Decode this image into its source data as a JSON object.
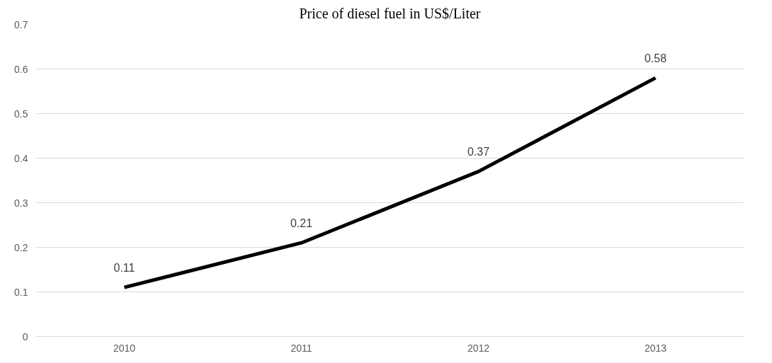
{
  "chart_data": {
    "type": "line",
    "title": "Price of diesel fuel in US$/Liter",
    "categories": [
      "2010",
      "2011",
      "2012",
      "2013"
    ],
    "series": [
      {
        "color": "#000000",
        "values": [
          0.11,
          0.21,
          0.37,
          0.58
        ]
      }
    ],
    "ylim": [
      0,
      0.7
    ],
    "yticks": [
      0,
      0.1,
      0.2,
      0.3,
      0.4,
      0.5,
      0.6,
      0.7
    ],
    "grid": "y",
    "data_labels": true,
    "marker": "none",
    "line_style": "solid"
  }
}
